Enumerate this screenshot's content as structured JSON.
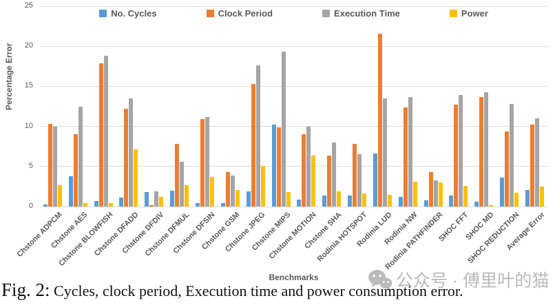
{
  "figure": {
    "caption_prefix": "Fig. 2:",
    "caption_text": " Cycles, clock period, Execution time and power consumption error.",
    "watermark_text": "公众号 · 傅里叶的猫"
  },
  "chart_data": {
    "type": "bar",
    "title": "",
    "xlabel": "Benchmarks",
    "ylabel": "Percentage Error",
    "ylim": [
      0,
      25
    ],
    "yticks": [
      0,
      5,
      10,
      15,
      20,
      25
    ],
    "grid": true,
    "legend_position": "top",
    "categories": [
      "Chstone ADPCM",
      "Chstone AES",
      "Chstone BLOWFISH",
      "Chstone DFADD",
      "Chstone DFDIV",
      "Chstone DFMUL",
      "Chstone DFSIN",
      "Chstone GSM",
      "Chstone JPEG",
      "Chstone MIPS",
      "Chstone MOTION",
      "Chstone SHA",
      "Rodinia HOTSPOT",
      "Rodinia LUD",
      "Rodinia NW",
      "Rodinia PATHFINDER",
      "SHOC FFT",
      "SHOC MD",
      "SHOC REDUCTION",
      "Average Error"
    ],
    "series": [
      {
        "name": "No. Cycles",
        "color": "#5B9BD5",
        "values": [
          0.3,
          3.8,
          0.7,
          1.1,
          1.8,
          2.0,
          0.4,
          0.45,
          1.9,
          10.2,
          0.9,
          1.4,
          1.4,
          6.6,
          1.2,
          0.8,
          1.4,
          0.6,
          3.6,
          2.1
        ]
      },
      {
        "name": "Clock Period",
        "color": "#ED7D31",
        "values": [
          10.3,
          9.0,
          17.9,
          12.2,
          0.15,
          7.8,
          10.9,
          4.3,
          15.3,
          9.9,
          9.0,
          6.4,
          7.8,
          21.6,
          12.4,
          4.3,
          12.7,
          13.7,
          9.4,
          10.2
        ]
      },
      {
        "name": "Execution Time",
        "color": "#A5A5A5",
        "values": [
          10.0,
          12.5,
          18.8,
          13.5,
          1.9,
          5.6,
          11.2,
          3.9,
          17.6,
          19.3,
          10.0,
          8.0,
          6.5,
          13.5,
          13.7,
          3.3,
          13.9,
          14.3,
          12.8,
          11.0
        ]
      },
      {
        "name": "Power",
        "color": "#FFC000",
        "values": [
          2.7,
          0.4,
          0.4,
          7.1,
          1.2,
          2.7,
          3.7,
          2.1,
          5.1,
          1.8,
          6.4,
          1.9,
          1.6,
          1.5,
          3.1,
          3.0,
          2.6,
          0.15,
          1.7,
          2.5
        ]
      }
    ]
  }
}
